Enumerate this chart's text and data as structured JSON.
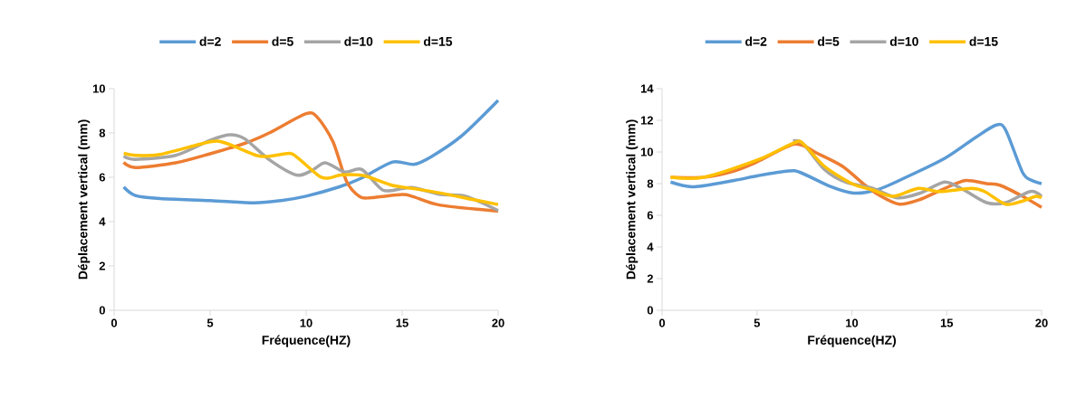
{
  "chart_data": [
    {
      "type": "line",
      "xlabel": "Fréquence(HZ)",
      "ylabel": "Déplacement vertical (mm)",
      "xlim": [
        0,
        20
      ],
      "ylim": [
        0,
        10
      ],
      "xticks": [
        0,
        5,
        10,
        15,
        20
      ],
      "yticks": [
        0,
        2,
        4,
        6,
        8,
        10
      ],
      "legend": "top",
      "marker": "none",
      "series": [
        {
          "name": "d=2",
          "color": "#5b9bd5",
          "x": [
            0.5,
            1.1,
            2.4,
            5,
            7.3,
            8.7,
            10,
            11.7,
            12.9,
            14.5,
            15.6,
            16.5,
            18.1,
            20
          ],
          "values": [
            5.56,
            5.18,
            5.04,
            4.95,
            4.85,
            4.95,
            5.15,
            5.56,
            5.97,
            6.69,
            6.58,
            6.92,
            7.87,
            9.47
          ]
        },
        {
          "name": "d=5",
          "color": "#ed7d31",
          "x": [
            0.5,
            1.1,
            3.2,
            5,
            6.8,
            8.1,
            10,
            10.6,
            11.4,
            12.1,
            12.8,
            13.4,
            15,
            15.6,
            17,
            20
          ],
          "values": [
            6.68,
            6.44,
            6.65,
            7.06,
            7.53,
            8.01,
            8.87,
            8.69,
            7.6,
            5.83,
            5.12,
            5.08,
            5.22,
            5.12,
            4.74,
            4.47
          ]
        },
        {
          "name": "d=10",
          "color": "#a5a5a5",
          "x": [
            0.5,
            1.1,
            3.2,
            5,
            6,
            6.8,
            8.1,
            9.5,
            10.3,
            11,
            12,
            12.9,
            14,
            15,
            15.6,
            17,
            18.3,
            20
          ],
          "values": [
            6.95,
            6.81,
            6.99,
            7.67,
            7.92,
            7.74,
            6.78,
            6.1,
            6.31,
            6.65,
            6.24,
            6.35,
            5.42,
            5.49,
            5.53,
            5.22,
            5.15,
            4.5
          ]
        },
        {
          "name": "d=15",
          "color": "#ffc000",
          "x": [
            0.5,
            1.1,
            2.4,
            5,
            5.85,
            7.4,
            8.1,
            9.15,
            9.6,
            10.7,
            11.2,
            11.8,
            12.8,
            13.4,
            14.5,
            15.6,
            17,
            18.6,
            20
          ],
          "values": [
            7.08,
            6.99,
            7.03,
            7.6,
            7.53,
            6.99,
            6.95,
            7.08,
            6.85,
            6.04,
            5.97,
            6.1,
            6.1,
            5.97,
            5.63,
            5.49,
            5.29,
            5.01,
            4.77
          ]
        }
      ]
    },
    {
      "type": "line",
      "xlabel": "Fréquence(HZ)",
      "ylabel": "Déplacement vertical (mm)",
      "xlim": [
        0,
        20
      ],
      "ylim": [
        0,
        14
      ],
      "xticks": [
        0,
        5,
        10,
        15,
        20
      ],
      "yticks": [
        0,
        2,
        4,
        6,
        8,
        10,
        12,
        14
      ],
      "legend": "top",
      "marker": "none",
      "series": [
        {
          "name": "d=2",
          "color": "#5b9bd5",
          "x": [
            0.45,
            1.7,
            3.8,
            5.05,
            6.65,
            7.3,
            8.9,
            10.1,
            11.3,
            12.5,
            14.9,
            16.5,
            17.6,
            18.1,
            19,
            19.5,
            20
          ],
          "values": [
            8.1,
            7.8,
            8.2,
            8.5,
            8.8,
            8.7,
            7.8,
            7.4,
            7.6,
            8.2,
            9.6,
            10.9,
            11.7,
            11.4,
            8.7,
            8.2,
            8.0
          ]
        },
        {
          "name": "d=5",
          "color": "#ed7d31",
          "x": [
            0.45,
            2.2,
            3.8,
            5.05,
            7.0,
            8.2,
            9.5,
            10.6,
            11.4,
            12.5,
            13.6,
            14.9,
            16,
            17.1,
            17.8,
            19,
            20
          ],
          "values": [
            8.4,
            8.4,
            8.8,
            9.4,
            10.5,
            9.9,
            9.1,
            8.0,
            7.3,
            6.7,
            7.0,
            7.7,
            8.2,
            8.0,
            7.9,
            7.2,
            6.5
          ]
        },
        {
          "name": "d=10",
          "color": "#a5a5a5",
          "x": [
            6.9,
            7.45,
            8.55,
            9.65,
            11.1,
            12.4,
            13.6,
            14.9,
            15.9,
            17.1,
            18.1,
            19.4,
            20
          ],
          "values": [
            10.7,
            10.5,
            8.9,
            8.1,
            7.7,
            7.1,
            7.4,
            8.1,
            7.6,
            6.8,
            6.8,
            7.5,
            7.2
          ]
        },
        {
          "name": "d=15",
          "color": "#ffc000",
          "x": [
            0.45,
            2.2,
            5.05,
            7.0,
            7.45,
            8.55,
            10,
            11.1,
            12.2,
            13.5,
            14.6,
            16.3,
            17,
            18.1,
            19,
            19.7,
            20
          ],
          "values": [
            8.4,
            8.4,
            9.5,
            10.6,
            10.5,
            9.1,
            8.0,
            7.6,
            7.2,
            7.7,
            7.5,
            7.7,
            7.5,
            6.7,
            6.9,
            7.2,
            7.1
          ]
        }
      ]
    }
  ]
}
